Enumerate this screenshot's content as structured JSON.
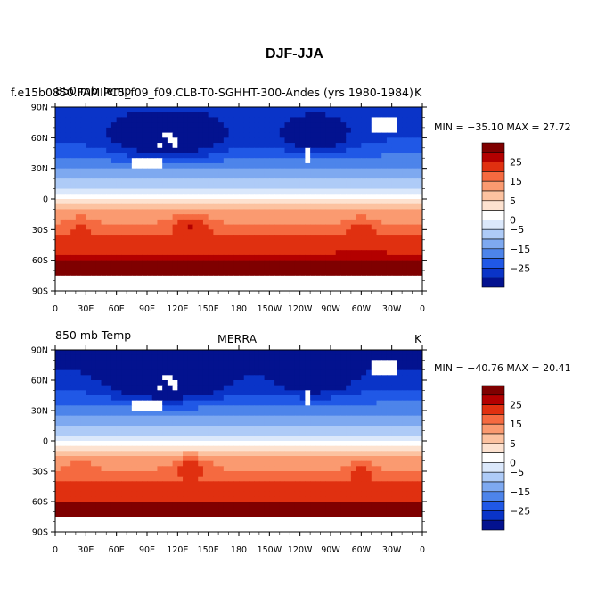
{
  "figure": {
    "main_title": "DJF-JJA"
  },
  "panels": [
    {
      "left_title": "850 mb Temp",
      "center_title": "f.e15b0850.FAMIPC5_f09_f09.CLB-T0-SGHHT-300-Andes (yrs 1980-1984)",
      "right_title": "K",
      "stats": "MIN = −35.10 MAX =  27.72"
    },
    {
      "left_title": "850 mb Temp",
      "center_title": "MERRA",
      "right_title": "K",
      "stats": "MIN = −40.76 MAX =  20.41"
    }
  ],
  "colorbar": {
    "labels": [
      "25",
      "15",
      "5",
      "0",
      "−5",
      "−15",
      "−25"
    ],
    "colors": [
      "#7f0000",
      "#b30000",
      "#e03010",
      "#f56a40",
      "#fa9a70",
      "#fcc2a0",
      "#fde2d0",
      "#ffffff",
      "#dbe8fb",
      "#aecbf7",
      "#7ea9f0",
      "#4d84ea",
      "#2058e6",
      "#0a34c8",
      "#03128f"
    ]
  },
  "chart_data": [
    {
      "type": "heatmap",
      "title": "f.e15b0850.FAMIPC5_f09_f09.CLB-T0-SGHHT-300-Andes (yrs 1980-1984)",
      "variable": "850 mb Temp",
      "season_difference": "DJF-JJA",
      "units": "K",
      "min": -35.1,
      "max": 27.72,
      "x_ticks": [
        "0",
        "30E",
        "60E",
        "90E",
        "120E",
        "150E",
        "180",
        "150W",
        "120W",
        "90W",
        "60W",
        "30W",
        "0"
      ],
      "y_ticks": [
        "90N",
        "60N",
        "30N",
        "0",
        "30S",
        "60S",
        "90S"
      ],
      "xlim": [
        0,
        360
      ],
      "ylim": [
        -90,
        90
      ],
      "colorbar_levels": [
        -30,
        -25,
        -20,
        -15,
        -10,
        -5,
        -2,
        0,
        2,
        5,
        10,
        15,
        20,
        25,
        30
      ]
    },
    {
      "type": "heatmap",
      "title": "MERRA",
      "variable": "850 mb Temp",
      "season_difference": "DJF-JJA",
      "units": "K",
      "min": -40.76,
      "max": 20.41,
      "x_ticks": [
        "0",
        "30E",
        "60E",
        "90E",
        "120E",
        "150E",
        "180",
        "150W",
        "120W",
        "90W",
        "60W",
        "30W",
        "0"
      ],
      "y_ticks": [
        "90N",
        "60N",
        "30N",
        "0",
        "30S",
        "60S",
        "90S"
      ],
      "xlim": [
        0,
        360
      ],
      "ylim": [
        -90,
        90
      ],
      "colorbar_levels": [
        -30,
        -25,
        -20,
        -15,
        -10,
        -5,
        -2,
        0,
        2,
        5,
        10,
        15,
        20,
        25,
        30
      ]
    }
  ]
}
